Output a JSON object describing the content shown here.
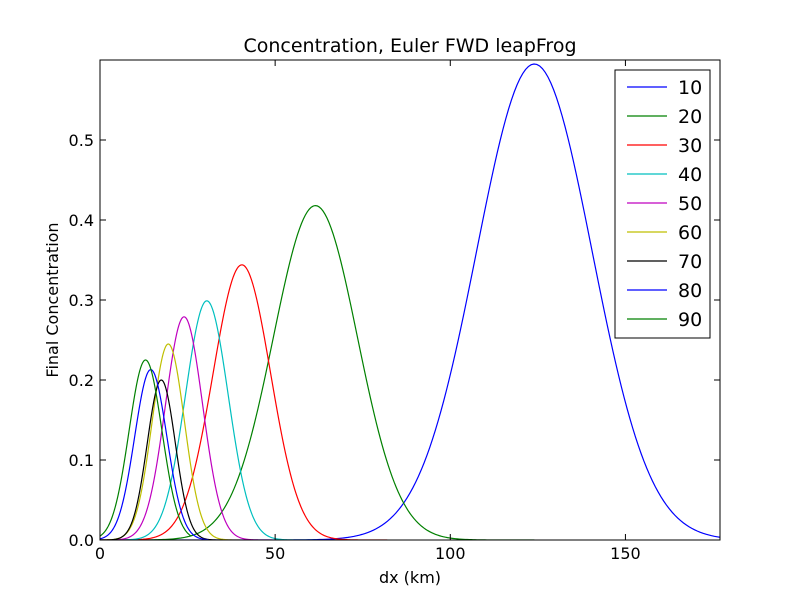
{
  "chart_data": {
    "type": "line",
    "title": "Concentration, Euler FWD leapFrog",
    "xlabel": "dx (km)",
    "ylabel": "Final Concentration",
    "xlim": [
      0,
      177
    ],
    "ylim": [
      0,
      0.6
    ],
    "xticks": [
      0,
      50,
      100,
      150
    ],
    "yticks": [
      0.0,
      0.1,
      0.2,
      0.3,
      0.4,
      0.5
    ],
    "grid": false,
    "legend_position": "top-right",
    "series": [
      {
        "name": "10",
        "color": "#0000ff",
        "peak_x": 124,
        "peak_y": 0.595,
        "sigma": 16.5,
        "x_start": 0,
        "x_end": 177
      },
      {
        "name": "20",
        "color": "#008000",
        "peak_x": 61.5,
        "peak_y": 0.418,
        "sigma": 12.0,
        "x_start": 0,
        "x_end": 124
      },
      {
        "name": "30",
        "color": "#ff0000",
        "peak_x": 40.5,
        "peak_y": 0.344,
        "sigma": 8.2,
        "x_start": 0,
        "x_end": 82
      },
      {
        "name": "40",
        "color": "#00bfbf",
        "peak_x": 30.5,
        "peak_y": 0.299,
        "sigma": 6.1,
        "x_start": 0,
        "x_end": 62
      },
      {
        "name": "50",
        "color": "#bf00bf",
        "peak_x": 24,
        "peak_y": 0.279,
        "sigma": 5.3,
        "x_start": 0,
        "x_end": 49
      },
      {
        "name": "60",
        "color": "#bfbf00",
        "peak_x": 19.5,
        "peak_y": 0.245,
        "sigma": 4.6,
        "x_start": 0,
        "x_end": 40
      },
      {
        "name": "70",
        "color": "#000000",
        "peak_x": 17.5,
        "peak_y": 0.2,
        "sigma": 4.0,
        "x_start": 0,
        "x_end": 35
      },
      {
        "name": "80",
        "color": "#0000ff",
        "peak_x": 14.5,
        "peak_y": 0.213,
        "sigma": 4.6,
        "x_start": 0,
        "x_end": 31
      },
      {
        "name": "90",
        "color": "#008000",
        "peak_x": 13,
        "peak_y": 0.225,
        "sigma": 4.7,
        "x_start": 0,
        "x_end": 26
      }
    ]
  }
}
